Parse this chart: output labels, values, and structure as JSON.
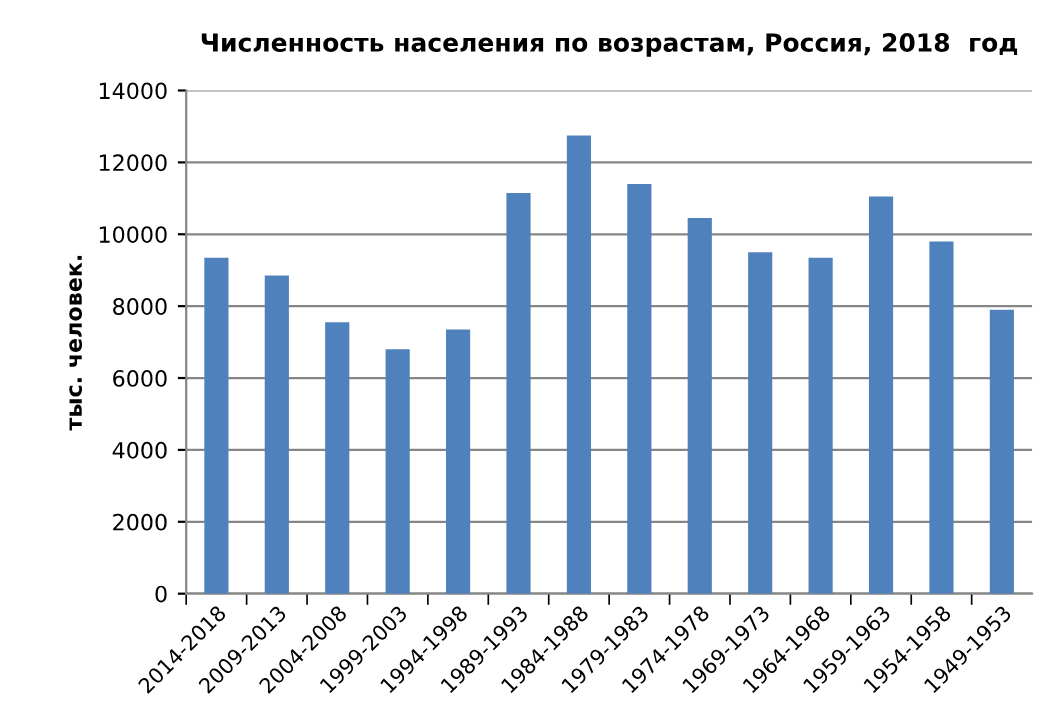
{
  "chart_data": {
    "type": "bar",
    "title": "Численность населения по возрастам, Россия, 2018  год",
    "ylabel": "тыс. человек.",
    "categories": [
      "2014-2018",
      "2009-2013",
      "2004-2008",
      "1999-2003",
      "1994-1998",
      "1989-1993",
      "1984-1988",
      "1979-1983",
      "1974-1978",
      "1969-1973",
      "1964-1968",
      "1959-1963",
      "1954-1958",
      "1949-1953"
    ],
    "values": [
      9350,
      8850,
      7550,
      6800,
      7350,
      11150,
      12750,
      11400,
      10450,
      9500,
      9350,
      11050,
      9800,
      7900
    ],
    "color": "#4f81bd",
    "ylim": [
      0,
      14000
    ],
    "yticks": [
      0,
      2000,
      4000,
      6000,
      8000,
      10000,
      12000,
      14000
    ],
    "grid": "y",
    "legend": false
  }
}
